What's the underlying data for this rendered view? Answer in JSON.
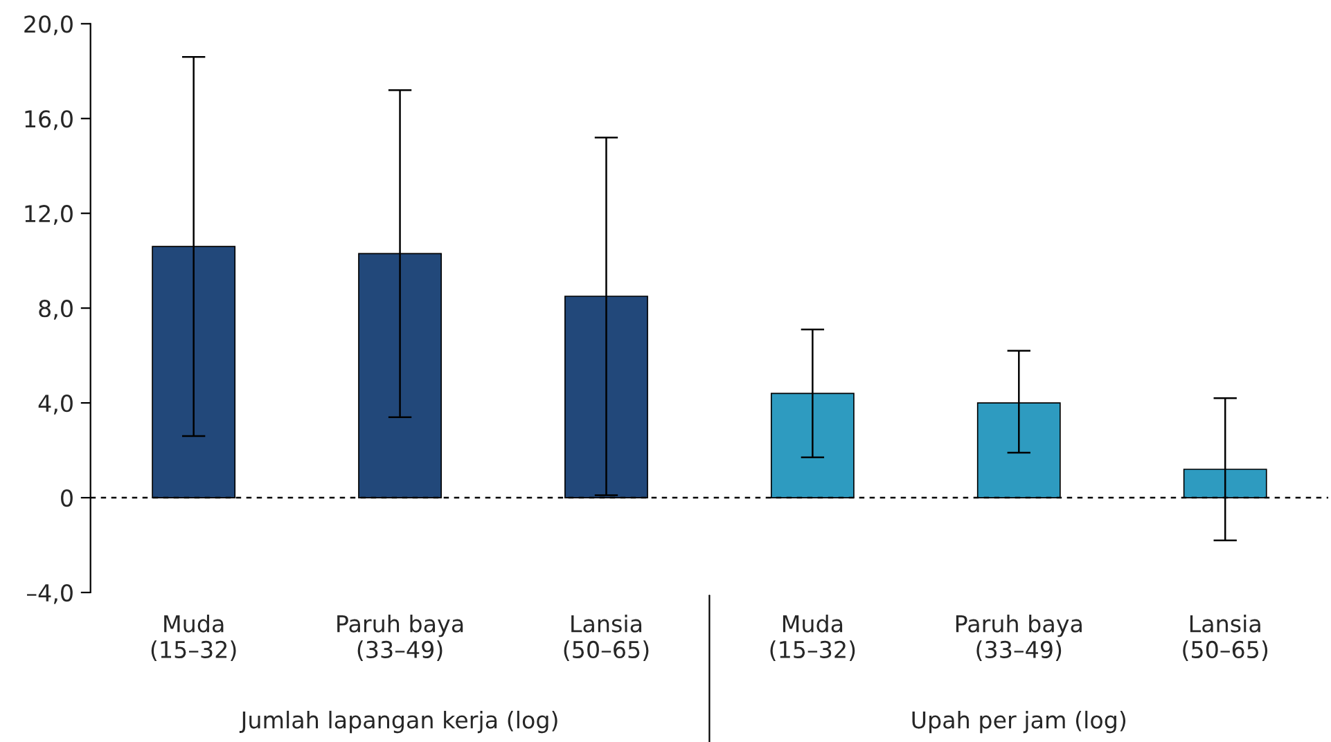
{
  "chart_data": {
    "type": "bar",
    "categories": [
      "Muda\n(15–32)",
      "Paruh baya\n(33–49)",
      "Lansia\n(50–65)",
      "Muda\n(15–32)",
      "Paruh baya\n(33–49)",
      "Lansia\n(50–65)"
    ],
    "values": [
      10.6,
      10.3,
      8.5,
      4.4,
      4.0,
      1.2
    ],
    "colors": [
      "#22487a",
      "#22487a",
      "#22487a",
      "#2e9bc0",
      "#2e9bc0",
      "#2e9bc0"
    ],
    "errors": [
      [
        2.6,
        18.6
      ],
      [
        3.4,
        17.2
      ],
      [
        0.1,
        15.2
      ],
      [
        1.7,
        7.1
      ],
      [
        1.9,
        6.2
      ],
      [
        -1.8,
        4.2
      ]
    ],
    "ylim": [
      -4,
      20
    ],
    "yticks": [
      {
        "value": -4,
        "label": "–4,0"
      },
      0,
      {
        "value": 4,
        "label": "4,0"
      },
      {
        "value": 8,
        "label": "8,0"
      },
      {
        "value": 12,
        "label": "12,0"
      },
      {
        "value": 16,
        "label": "16,0"
      },
      {
        "value": 20,
        "label": "20,0"
      }
    ],
    "ref_lines": [
      {
        "axis": "y",
        "value": 0,
        "color": "#000000",
        "line_style": "dashed"
      }
    ],
    "annotations": [
      "Jumlah lapangan kerja (log)",
      "Upah per jam (log)"
    ],
    "grid": false,
    "legend": false
  }
}
